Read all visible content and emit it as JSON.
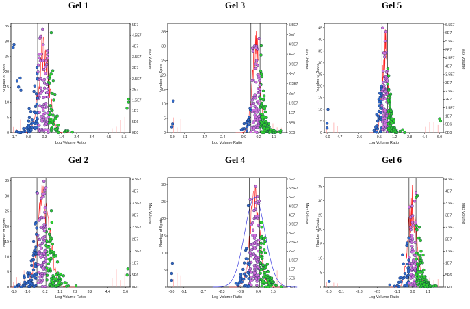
{
  "colors": {
    "histogram": "#ff2020",
    "histogram_light": "#ff9090",
    "normal_fit": "#3a3adf",
    "spot_blue": "#2f68c8",
    "spot_magenta": "#d070dc",
    "spot_green": "#2fd02f",
    "spot_edge": "#10204a",
    "threshold_line": "#000000"
  },
  "chart_data": [
    {
      "type": "scatter",
      "title": "Gel 1",
      "xlabel": "Log Volume Ratio",
      "ylabel": "Number of Spots",
      "y2label": "Max Volume",
      "xlim": [
        -1.9,
        5.9
      ],
      "ylim": [
        0,
        36
      ],
      "x_ticks": [
        "-1.7",
        "-0.8",
        "0.3",
        "1.4",
        "2.4",
        "3.4",
        "4.5",
        "5.5"
      ],
      "y_ticks": [
        "0",
        "5",
        "10",
        "15",
        "20",
        "25",
        "30",
        "35"
      ],
      "y2_ticks": [
        "0E0",
        "5E6",
        "1E7",
        "1.5E7",
        "2E7",
        "2.5E7",
        "3E7",
        "3.5E7",
        "4E7",
        "4.5E7",
        "5E7"
      ],
      "thresholds": [
        -0.15,
        0.55
      ],
      "normal_fit": false,
      "histogram": {
        "center": 0.25,
        "spread": 0.55,
        "peak": 35
      },
      "spots": {
        "center": 0.2,
        "spread": 0.9,
        "count": 190,
        "outliers": [
          [
            -1.75,
            28
          ],
          [
            -1.7,
            29
          ],
          [
            -1.5,
            17
          ],
          [
            -1.4,
            15
          ],
          [
            -1.3,
            18
          ],
          [
            -1.25,
            14
          ],
          [
            5.7,
            8
          ],
          [
            5.8,
            10
          ],
          [
            5.8,
            11
          ]
        ]
      }
    },
    {
      "type": "scatter",
      "title": "Gel 3",
      "xlabel": "Log Volume Ratio",
      "ylabel": "Number of Spots",
      "y2label": "Max Volume",
      "xlim": [
        -6.3,
        2.2
      ],
      "ylim": [
        0,
        38
      ],
      "x_ticks": [
        "-6.0",
        "-5.1",
        "-3.7",
        "-2.4",
        "-0.9",
        "0.2",
        "1.3"
      ],
      "y_ticks": [
        "0",
        "5",
        "10",
        "15",
        "20",
        "25",
        "30",
        "35"
      ],
      "y2_ticks": [
        "0E0",
        "5E6",
        "1E7",
        "1.5E7",
        "2E7",
        "2.5E7",
        "3E7",
        "3.5E7",
        "4E7",
        "4.5E7",
        "5E7",
        "5.5E7"
      ],
      "thresholds": [
        -0.35,
        0.3
      ],
      "normal_fit": false,
      "histogram": {
        "center": 0.0,
        "spread": 0.45,
        "peak": 37
      },
      "spots": {
        "center": 0.3,
        "spread": 0.75,
        "count": 200,
        "outliers": [
          [
            -6.0,
            2
          ],
          [
            -5.95,
            3
          ],
          [
            -5.9,
            11
          ]
        ]
      }
    },
    {
      "type": "scatter",
      "title": "Gel 5",
      "xlabel": "Log Volume Ratio",
      "ylabel": "Number of Spots",
      "y2label": "Max Volume",
      "xlim": [
        -6.3,
        6.4
      ],
      "ylim": [
        0,
        47
      ],
      "x_ticks": [
        "-6.0",
        "-4.7",
        "-2.6",
        "-0.5",
        "1.2",
        "2.8",
        "4.4",
        "6.0"
      ],
      "y_ticks": [
        "0",
        "5",
        "10",
        "15",
        "20",
        "25",
        "30",
        "35",
        "40",
        "45"
      ],
      "y2_ticks": [
        "0E0",
        "5E6",
        "1E7",
        "1.5E7",
        "2E7",
        "2.5E7",
        "3E7",
        "3.5E7",
        "4E7",
        "4.5E7",
        "5E7",
        "5.5E7",
        "6E7",
        "6.5E7"
      ],
      "thresholds": [
        -0.15,
        0.45
      ],
      "normal_fit": false,
      "histogram": {
        "center": 0.15,
        "spread": 0.5,
        "peak": 46
      },
      "spots": {
        "center": 0.4,
        "spread": 0.85,
        "count": 180,
        "outliers": [
          [
            -6.0,
            2
          ],
          [
            -6.0,
            4
          ],
          [
            -5.9,
            10
          ],
          [
            6.0,
            6
          ],
          [
            6.1,
            5
          ]
        ]
      }
    },
    {
      "type": "scatter",
      "title": "Gel 2",
      "xlabel": "Log Volume Ratio",
      "ylabel": "Number of Spots",
      "y2label": "Max Volume",
      "xlim": [
        -2.1,
        5.9
      ],
      "ylim": [
        0,
        36
      ],
      "x_ticks": [
        "-1.9",
        "-1.0",
        "0.2",
        "1.2",
        "2.2",
        "3.2",
        "4.4",
        "5.6"
      ],
      "y_ticks": [
        "0",
        "5",
        "10",
        "15",
        "20",
        "25",
        "30",
        "35"
      ],
      "y2_ticks": [
        "0E0",
        "5E6",
        "1E7",
        "1.5E7",
        "2E7",
        "2.5E7",
        "3E7",
        "3.5E7",
        "4E7",
        "4.5E7"
      ],
      "thresholds": [
        -0.35,
        0.25
      ],
      "normal_fit": false,
      "histogram": {
        "center": 0.1,
        "spread": 0.7,
        "peak": 35
      },
      "spots": {
        "center": 0.1,
        "spread": 1.0,
        "count": 230,
        "outliers": [
          [
            5.7,
            4
          ],
          [
            5.75,
            6
          ]
        ]
      }
    },
    {
      "type": "scatter",
      "title": "Gel 4",
      "xlabel": "Log Volume Ratio",
      "ylabel": "Number of Spots",
      "y2label": "Max Volume",
      "xlim": [
        -6.3,
        2.5
      ],
      "ylim": [
        0,
        32
      ],
      "x_ticks": [
        "-6.0",
        "-5.1",
        "-3.7",
        "-2.3",
        "-0.9",
        "0.4",
        "1.5"
      ],
      "y_ticks": [
        "0",
        "5",
        "10",
        "15",
        "20",
        "25",
        "30"
      ],
      "y2_ticks": [
        "0E0",
        "5E6",
        "1E7",
        "1.5E7",
        "2E7",
        "2.5E7",
        "3E7",
        "3.5E7",
        "4E7",
        "4.5E7",
        "5E7",
        "5.5E7",
        "6E7"
      ],
      "thresholds": [
        -0.25,
        0.5
      ],
      "normal_fit": true,
      "histogram": {
        "center": 0.15,
        "spread": 0.6,
        "peak": 31
      },
      "spots": {
        "center": 0.4,
        "spread": 0.9,
        "count": 200,
        "outliers": [
          [
            -6.0,
            2
          ],
          [
            -6.0,
            4
          ],
          [
            -5.95,
            7
          ]
        ]
      }
    },
    {
      "type": "scatter",
      "title": "Gel 6",
      "xlabel": "Log Volume Ratio",
      "ylabel": "Number of Spots",
      "y2label": "Max Volume",
      "xlim": [
        -6.3,
        2.2
      ],
      "ylim": [
        0,
        38
      ],
      "x_ticks": [
        "-6.0",
        "-5.1",
        "-3.8",
        "-2.5",
        "-1.1",
        "0.0",
        "1.1"
      ],
      "y_ticks": [
        "0",
        "5",
        "10",
        "15",
        "20",
        "25",
        "30",
        "35"
      ],
      "y2_ticks": [
        "0E0",
        "5E6",
        "1E7",
        "1.5E7",
        "2E7",
        "2.5E7",
        "3E7",
        "3.5E7",
        "4E7",
        "4.5E7"
      ],
      "thresholds": [
        -0.25,
        0.25
      ],
      "normal_fit": false,
      "histogram": {
        "center": 0.0,
        "spread": 0.5,
        "peak": 36
      },
      "spots": {
        "center": 0.3,
        "spread": 0.8,
        "count": 200,
        "outliers": [
          [
            -5.95,
            2
          ]
        ]
      }
    }
  ]
}
